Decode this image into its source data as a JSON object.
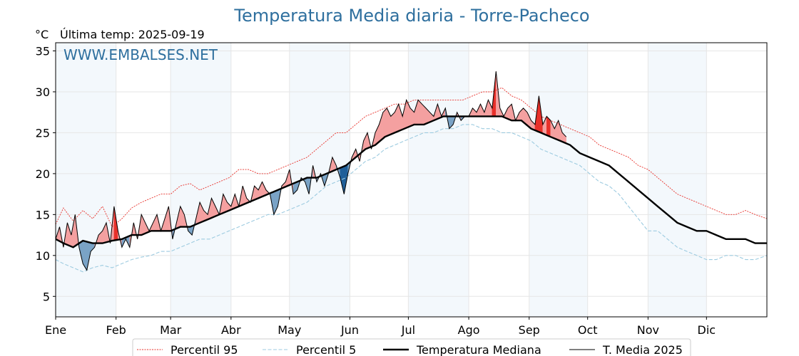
{
  "chart_data": {
    "type": "line",
    "title": "Temperatura Media diaria - Torre-Pacheco",
    "unit": "°C",
    "last_temp_label": "Última temp: 2025-09-19",
    "watermark": "WWW.EMBALSES.NET",
    "xlim": [
      1,
      366
    ],
    "ylim": [
      2.5,
      36
    ],
    "y_ticks": [
      5,
      10,
      15,
      20,
      25,
      30,
      35
    ],
    "x_ticks": [
      {
        "label": "Ene",
        "day": 1
      },
      {
        "label": "Feb",
        "day": 32
      },
      {
        "label": "Mar",
        "day": 60
      },
      {
        "label": "Abr",
        "day": 91
      },
      {
        "label": "May",
        "day": 121
      },
      {
        "label": "Jun",
        "day": 152
      },
      {
        "label": "Jul",
        "day": 182
      },
      {
        "label": "Ago",
        "day": 213
      },
      {
        "label": "Sep",
        "day": 244
      },
      {
        "label": "Oct",
        "day": 274
      },
      {
        "label": "Nov",
        "day": 305
      },
      {
        "label": "Dic",
        "day": 335
      }
    ],
    "grid": true,
    "legend_position": "bottom",
    "colors": {
      "p95": "#e8302a",
      "p5": "#9dcbe0",
      "median": "#000000",
      "t2025": "#000000",
      "above": "#f4a0a0",
      "above_strong": "#e8302a",
      "below": "#7aa3c6",
      "below_strong": "#1f5f99",
      "band": "#dcebf7",
      "watermark": "#2e6f9e"
    },
    "series": [
      {
        "name": "Percentil 95",
        "style": "dotted",
        "x": [
          1,
          5,
          10,
          15,
          20,
          25,
          30,
          35,
          40,
          45,
          50,
          55,
          60,
          65,
          70,
          75,
          80,
          85,
          90,
          95,
          100,
          105,
          110,
          115,
          120,
          125,
          130,
          135,
          140,
          145,
          150,
          155,
          160,
          165,
          170,
          175,
          180,
          185,
          190,
          195,
          200,
          205,
          210,
          215,
          220,
          225,
          230,
          235,
          240,
          245,
          250,
          255,
          260,
          265,
          270,
          275,
          280,
          285,
          290,
          295,
          300,
          305,
          310,
          315,
          320,
          325,
          330,
          335,
          340,
          345,
          350,
          355,
          360,
          366
        ],
        "values": [
          13.8,
          15.8,
          14.2,
          15.5,
          14.5,
          16.0,
          13.5,
          14.5,
          15.8,
          16.5,
          17.0,
          17.5,
          17.5,
          18.5,
          18.8,
          18.0,
          18.5,
          19.0,
          19.5,
          20.5,
          20.5,
          20.0,
          20.0,
          20.5,
          21.0,
          21.5,
          22.0,
          23.0,
          24.0,
          25.0,
          25.0,
          26.0,
          27.0,
          27.5,
          28.0,
          28.5,
          28.5,
          29.0,
          29.0,
          29.0,
          29.0,
          29.0,
          29.0,
          29.5,
          30.0,
          30.0,
          30.5,
          29.5,
          29.0,
          28.0,
          27.0,
          26.5,
          26.0,
          25.5,
          25.0,
          24.5,
          23.5,
          23.0,
          22.5,
          22.0,
          21.0,
          20.5,
          19.5,
          18.5,
          17.5,
          17.0,
          16.5,
          16.0,
          15.5,
          15.0,
          15.0,
          15.5,
          15.0,
          14.5
        ]
      },
      {
        "name": "Percentil 5",
        "style": "dashed",
        "x": [
          1,
          5,
          10,
          15,
          20,
          25,
          30,
          35,
          40,
          45,
          50,
          55,
          60,
          65,
          70,
          75,
          80,
          85,
          90,
          95,
          100,
          105,
          110,
          115,
          120,
          125,
          130,
          135,
          140,
          145,
          150,
          155,
          160,
          165,
          170,
          175,
          180,
          185,
          190,
          195,
          200,
          205,
          210,
          215,
          220,
          225,
          230,
          235,
          240,
          245,
          250,
          255,
          260,
          265,
          270,
          275,
          280,
          285,
          290,
          295,
          300,
          305,
          310,
          315,
          320,
          325,
          330,
          335,
          340,
          345,
          350,
          355,
          360,
          366
        ],
        "values": [
          9.5,
          9.0,
          8.5,
          8.0,
          8.5,
          8.8,
          8.5,
          9.0,
          9.5,
          9.8,
          10.0,
          10.5,
          10.5,
          11.0,
          11.5,
          12.0,
          12.0,
          12.5,
          13.0,
          13.5,
          14.0,
          14.5,
          15.0,
          15.0,
          15.5,
          16.0,
          16.5,
          17.5,
          18.5,
          19.0,
          19.5,
          20.5,
          21.5,
          22.0,
          23.0,
          23.5,
          24.0,
          24.5,
          25.0,
          25.0,
          25.5,
          25.5,
          26.0,
          26.0,
          25.5,
          25.5,
          25.0,
          25.0,
          24.5,
          24.0,
          23.0,
          22.5,
          22.0,
          21.5,
          21.0,
          20.0,
          19.0,
          18.5,
          17.5,
          16.0,
          14.5,
          13.0,
          13.0,
          12.0,
          11.0,
          10.5,
          10.0,
          9.5,
          9.5,
          10.0,
          10.0,
          9.5,
          9.5,
          10.0
        ]
      },
      {
        "name": "Temperatura Mediana",
        "style": "solid-bold",
        "x": [
          1,
          5,
          10,
          15,
          20,
          25,
          30,
          35,
          40,
          45,
          50,
          55,
          60,
          65,
          70,
          75,
          80,
          85,
          90,
          95,
          100,
          105,
          110,
          115,
          120,
          125,
          130,
          135,
          140,
          145,
          150,
          155,
          160,
          165,
          170,
          175,
          180,
          185,
          190,
          195,
          200,
          205,
          210,
          215,
          220,
          225,
          230,
          235,
          240,
          245,
          250,
          255,
          260,
          265,
          270,
          275,
          280,
          285,
          290,
          295,
          300,
          305,
          310,
          315,
          320,
          325,
          330,
          335,
          340,
          345,
          350,
          355,
          360,
          366
        ],
        "values": [
          12.0,
          11.5,
          11.0,
          11.8,
          11.5,
          11.5,
          11.8,
          12.0,
          12.5,
          12.5,
          13.0,
          13.0,
          13.0,
          13.5,
          13.5,
          14.0,
          14.5,
          15.0,
          15.5,
          16.0,
          16.5,
          17.0,
          17.5,
          18.0,
          18.5,
          19.0,
          19.5,
          19.5,
          20.0,
          20.5,
          21.0,
          22.0,
          23.0,
          23.5,
          24.5,
          25.0,
          25.5,
          26.0,
          26.0,
          26.5,
          27.0,
          27.0,
          27.0,
          27.0,
          27.0,
          27.0,
          27.0,
          26.5,
          26.5,
          25.5,
          25.0,
          24.5,
          24.0,
          23.5,
          22.5,
          22.0,
          21.5,
          21.0,
          20.0,
          19.0,
          18.0,
          17.0,
          16.0,
          15.0,
          14.0,
          13.5,
          13.0,
          13.0,
          12.5,
          12.0,
          12.0,
          12.0,
          11.5,
          11.5
        ]
      },
      {
        "name": "T. Media 2025",
        "style": "solid-thin",
        "x": [
          1,
          3,
          5,
          7,
          9,
          11,
          13,
          15,
          17,
          19,
          21,
          23,
          25,
          27,
          29,
          31,
          33,
          35,
          37,
          39,
          41,
          43,
          45,
          47,
          49,
          51,
          53,
          55,
          57,
          59,
          61,
          63,
          65,
          67,
          69,
          71,
          73,
          75,
          77,
          79,
          81,
          83,
          85,
          87,
          89,
          91,
          93,
          95,
          97,
          99,
          101,
          103,
          105,
          107,
          109,
          111,
          113,
          115,
          117,
          119,
          121,
          123,
          125,
          127,
          129,
          131,
          133,
          135,
          137,
          139,
          141,
          143,
          145,
          147,
          149,
          151,
          153,
          155,
          157,
          159,
          161,
          163,
          165,
          167,
          169,
          171,
          173,
          175,
          177,
          179,
          181,
          183,
          185,
          187,
          189,
          191,
          193,
          195,
          197,
          199,
          201,
          203,
          205,
          207,
          209,
          211,
          213,
          215,
          217,
          219,
          221,
          223,
          225,
          227,
          229,
          231,
          233,
          235,
          237,
          239,
          241,
          243,
          245,
          247,
          249,
          251,
          253,
          255,
          257,
          259,
          261,
          263
        ],
        "values": [
          12.0,
          13.5,
          11.0,
          14.0,
          12.5,
          15.0,
          11.0,
          9.0,
          8.2,
          10.5,
          11.0,
          12.5,
          13.0,
          14.0,
          11.5,
          16.0,
          13.0,
          11.0,
          12.0,
          11.0,
          14.0,
          12.0,
          15.0,
          14.0,
          13.0,
          14.0,
          15.0,
          13.0,
          14.5,
          16.0,
          12.0,
          14.0,
          16.0,
          15.0,
          13.0,
          12.5,
          14.5,
          16.5,
          15.5,
          15.0,
          17.0,
          16.0,
          15.0,
          17.5,
          16.5,
          16.0,
          17.5,
          16.0,
          18.5,
          17.0,
          16.5,
          18.5,
          18.0,
          19.0,
          18.0,
          17.5,
          15.0,
          16.0,
          18.5,
          19.0,
          20.5,
          17.5,
          18.0,
          19.5,
          19.0,
          17.5,
          21.0,
          19.0,
          20.0,
          18.5,
          20.0,
          22.0,
          21.0,
          19.5,
          17.5,
          20.0,
          22.0,
          23.0,
          21.5,
          24.0,
          25.0,
          23.0,
          25.0,
          26.0,
          27.5,
          28.0,
          27.0,
          27.5,
          28.5,
          27.0,
          29.0,
          28.0,
          27.5,
          29.0,
          28.5,
          28.0,
          27.5,
          27.0,
          28.5,
          27.0,
          28.0,
          25.5,
          26.0,
          27.5,
          26.5,
          27.0,
          27.0,
          28.0,
          27.5,
          28.5,
          27.5,
          29.0,
          28.0,
          32.5,
          28.0,
          27.0,
          28.0,
          28.5,
          26.5,
          27.5,
          28.0,
          27.5,
          26.5,
          26.0,
          29.5,
          26.0,
          27.0,
          26.5,
          25.5,
          26.5,
          25.0,
          24.5
        ]
      }
    ]
  },
  "legend": [
    {
      "label": "Percentil 95"
    },
    {
      "label": "Percentil 5"
    },
    {
      "label": "Temperatura Mediana"
    },
    {
      "label": "T. Media 2025"
    }
  ]
}
